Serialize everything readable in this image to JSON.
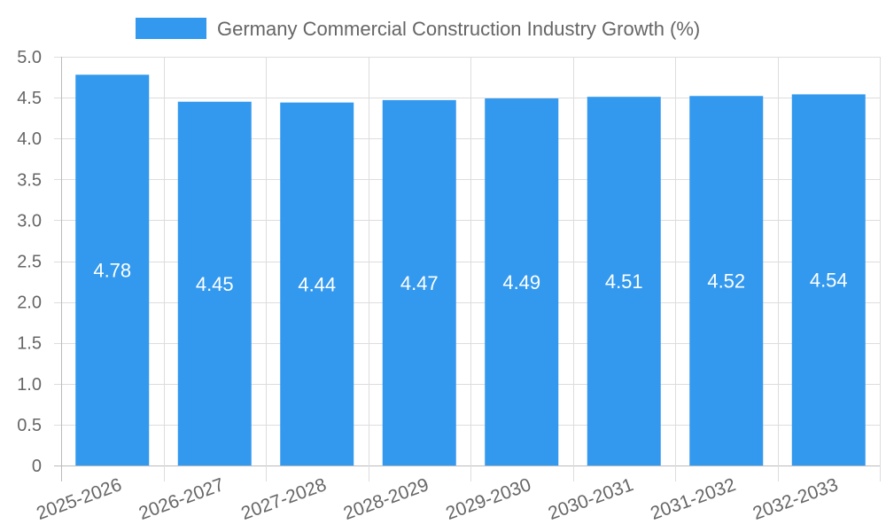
{
  "chart_data": {
    "type": "bar",
    "categories": [
      "2025-2026",
      "2026-2027",
      "2027-2028",
      "2028-2029",
      "2029-2030",
      "2030-2031",
      "2031-2032",
      "2032-2033"
    ],
    "series": [
      {
        "name": "Germany Commercial Construction Industry Growth (%)",
        "values": [
          4.78,
          4.45,
          4.44,
          4.47,
          4.49,
          4.51,
          4.52,
          4.54
        ],
        "data_labels": [
          "4.78",
          "4.45",
          "4.44",
          "4.47",
          "4.49",
          "4.51",
          "4.52",
          "4.54"
        ]
      }
    ],
    "y_ticks": [
      "0",
      "0.5",
      "1.0",
      "1.5",
      "2.0",
      "2.5",
      "3.0",
      "3.5",
      "4.0",
      "4.5",
      "5.0"
    ],
    "ylim": [
      0,
      5
    ],
    "title": "",
    "xlabel": "",
    "ylabel": "",
    "grid": true,
    "legend_position": "top-center",
    "colors": {
      "bar": "#3399ee",
      "grid": "#dddddd",
      "axis": "#bbbbbb",
      "text": "#666666",
      "data_label": "#ffffff"
    }
  }
}
